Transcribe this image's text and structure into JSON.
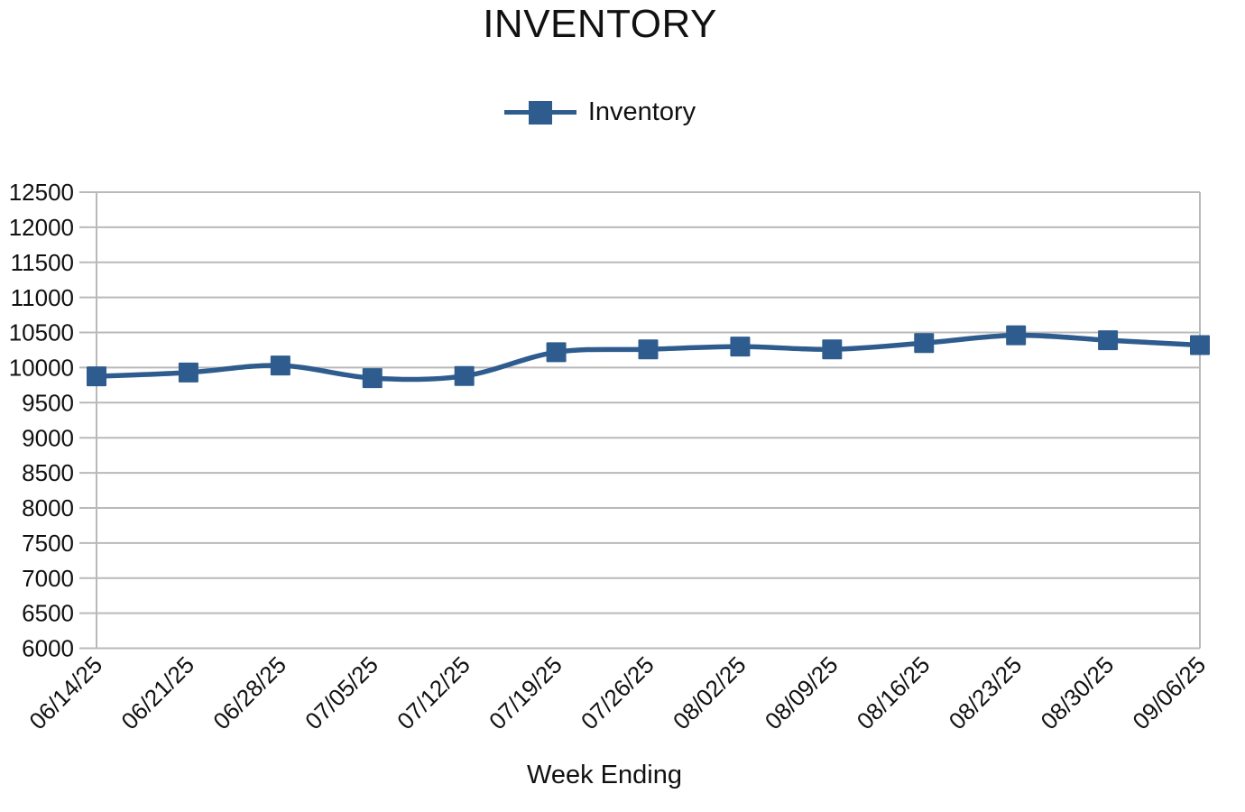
{
  "chart_data": {
    "type": "line",
    "title": "INVENTORY",
    "xlabel": "Week Ending",
    "ylabel": "",
    "x": [
      "06/14/25",
      "06/21/25",
      "06/28/25",
      "07/05/25",
      "07/12/25",
      "07/19/25",
      "07/26/25",
      "08/02/25",
      "08/09/25",
      "08/16/25",
      "08/23/25",
      "08/30/25",
      "09/06/25"
    ],
    "series": [
      {
        "name": "Inventory",
        "marker": "square",
        "values": [
          9875,
          9930,
          10030,
          9850,
          9880,
          10220,
          10260,
          10300,
          10260,
          10350,
          10460,
          10390,
          10320
        ]
      }
    ],
    "ylim": [
      6000,
      12500
    ],
    "ytick_step": 500,
    "grid": "horizontal",
    "legend_position": "top-center",
    "line_style": "smooth",
    "colors": {
      "series": "#2E5C8E",
      "grid": "#B9B9B9",
      "axis": "#B9B9B9",
      "text": "#111111",
      "background": "#FFFFFF"
    }
  }
}
